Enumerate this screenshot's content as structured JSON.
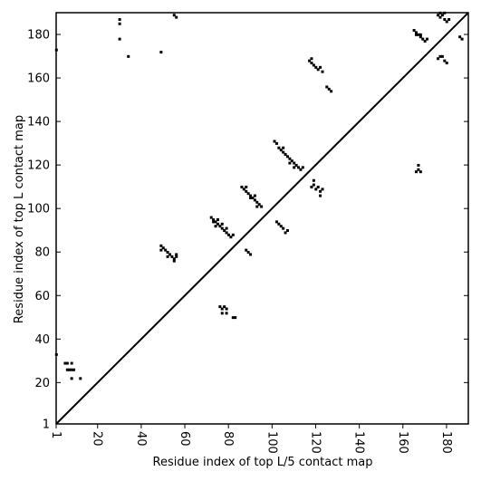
{
  "chart_data": {
    "type": "heatmap",
    "subtype": "contact-map-comparison",
    "title": "",
    "xlabel": "Residue index of top L/5 contact map",
    "ylabel": "Residue index of top L contact map",
    "xlim": [
      1,
      190
    ],
    "ylim": [
      1,
      190
    ],
    "x_ticks": [
      1,
      20,
      40,
      60,
      80,
      100,
      120,
      140,
      160,
      180
    ],
    "y_ticks": [
      1,
      20,
      40,
      60,
      80,
      100,
      120,
      140,
      160,
      180
    ],
    "diagonal": true,
    "grid": false,
    "cell_color": "#000000",
    "background_color": "#ffffff",
    "contacts": [
      [
        1,
        173
      ],
      [
        30,
        185
      ],
      [
        30,
        187
      ],
      [
        30,
        178
      ],
      [
        34,
        170
      ],
      [
        49,
        172
      ],
      [
        55,
        189
      ],
      [
        56,
        188
      ],
      [
        117,
        168
      ],
      [
        118,
        167
      ],
      [
        119,
        166
      ],
      [
        120,
        165
      ],
      [
        121,
        164
      ],
      [
        118,
        169
      ],
      [
        122,
        165
      ],
      [
        123,
        163
      ],
      [
        125,
        156
      ],
      [
        126,
        155
      ],
      [
        127,
        154
      ],
      [
        165,
        182
      ],
      [
        166,
        181
      ],
      [
        167,
        180
      ],
      [
        168,
        179
      ],
      [
        169,
        178
      ],
      [
        170,
        177
      ],
      [
        171,
        178
      ],
      [
        166,
        180
      ],
      [
        168,
        180
      ],
      [
        176,
        189
      ],
      [
        177,
        188
      ],
      [
        178,
        189
      ],
      [
        179,
        187
      ],
      [
        180,
        186
      ],
      [
        181,
        187
      ],
      [
        177,
        190
      ],
      [
        179,
        190
      ],
      [
        176,
        169
      ],
      [
        178,
        170
      ],
      [
        179,
        168
      ],
      [
        180,
        167
      ],
      [
        177,
        170
      ],
      [
        186,
        179
      ],
      [
        187,
        178
      ],
      [
        166,
        117
      ],
      [
        167,
        118
      ],
      [
        167,
        120
      ],
      [
        168,
        117
      ],
      [
        101,
        131
      ],
      [
        102,
        130
      ],
      [
        103,
        128
      ],
      [
        104,
        127
      ],
      [
        105,
        126
      ],
      [
        106,
        125
      ],
      [
        107,
        124
      ],
      [
        108,
        123
      ],
      [
        109,
        122
      ],
      [
        110,
        121
      ],
      [
        111,
        120
      ],
      [
        112,
        119
      ],
      [
        113,
        118
      ],
      [
        105,
        128
      ],
      [
        108,
        121
      ],
      [
        110,
        119
      ],
      [
        114,
        119
      ],
      [
        118,
        110
      ],
      [
        119,
        111
      ],
      [
        119,
        113
      ],
      [
        120,
        109
      ],
      [
        121,
        110
      ],
      [
        122,
        108
      ],
      [
        122,
        106
      ],
      [
        123,
        109
      ],
      [
        102,
        94
      ],
      [
        103,
        93
      ],
      [
        104,
        92
      ],
      [
        105,
        91
      ],
      [
        106,
        89
      ],
      [
        107,
        90
      ],
      [
        86,
        110
      ],
      [
        87,
        109
      ],
      [
        88,
        108
      ],
      [
        89,
        107
      ],
      [
        90,
        106
      ],
      [
        91,
        105
      ],
      [
        92,
        104
      ],
      [
        93,
        103
      ],
      [
        94,
        102
      ],
      [
        95,
        101
      ],
      [
        88,
        110
      ],
      [
        90,
        105
      ],
      [
        92,
        106
      ],
      [
        93,
        101
      ],
      [
        72,
        96
      ],
      [
        73,
        95
      ],
      [
        74,
        94
      ],
      [
        75,
        93
      ],
      [
        76,
        92
      ],
      [
        77,
        91
      ],
      [
        78,
        90
      ],
      [
        79,
        89
      ],
      [
        80,
        88
      ],
      [
        81,
        87
      ],
      [
        82,
        88
      ],
      [
        75,
        95
      ],
      [
        77,
        93
      ],
      [
        79,
        91
      ],
      [
        74,
        92
      ],
      [
        73,
        94
      ],
      [
        88,
        81
      ],
      [
        89,
        80
      ],
      [
        90,
        79
      ],
      [
        49,
        83
      ],
      [
        50,
        82
      ],
      [
        51,
        81
      ],
      [
        52,
        80
      ],
      [
        53,
        79
      ],
      [
        54,
        78
      ],
      [
        55,
        77
      ],
      [
        56,
        78
      ],
      [
        56,
        79
      ],
      [
        49,
        81
      ],
      [
        52,
        78
      ],
      [
        55,
        76
      ],
      [
        76,
        55
      ],
      [
        77,
        54
      ],
      [
        78,
        55
      ],
      [
        79,
        54
      ],
      [
        77,
        52
      ],
      [
        79,
        52
      ],
      [
        82,
        50
      ],
      [
        83,
        50
      ],
      [
        1,
        33
      ],
      [
        5,
        29
      ],
      [
        6,
        29
      ],
      [
        8,
        29
      ],
      [
        7,
        26
      ],
      [
        8,
        26
      ],
      [
        9,
        26
      ],
      [
        8,
        22
      ],
      [
        12,
        22
      ],
      [
        6,
        26
      ]
    ]
  }
}
